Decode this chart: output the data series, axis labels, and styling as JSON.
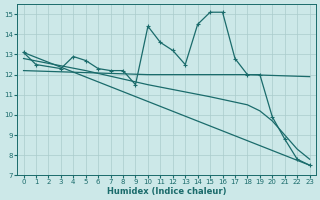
{
  "xlabel": "Humidex (Indice chaleur)",
  "bg_color": "#cce8e8",
  "line_color": "#1a6b6b",
  "grid_color": "#aacccc",
  "xlim": [
    -0.5,
    23.5
  ],
  "ylim": [
    7,
    15.5
  ],
  "yticks": [
    7,
    8,
    9,
    10,
    11,
    12,
    13,
    14,
    15
  ],
  "xticks": [
    0,
    1,
    2,
    3,
    4,
    5,
    6,
    7,
    8,
    9,
    10,
    11,
    12,
    13,
    14,
    15,
    16,
    17,
    18,
    19,
    20,
    21,
    22,
    23
  ],
  "series1_x": [
    0,
    1,
    3,
    4,
    5,
    6,
    7,
    8,
    9,
    10,
    11,
    12,
    13,
    14,
    15,
    16,
    17,
    18,
    19,
    20,
    21,
    22,
    23
  ],
  "series1_y": [
    13.1,
    12.5,
    12.3,
    12.9,
    12.7,
    12.3,
    12.2,
    12.2,
    11.5,
    14.4,
    13.6,
    13.2,
    12.5,
    14.5,
    15.1,
    15.1,
    12.8,
    12.0,
    12.0,
    9.9,
    8.8,
    7.8,
    7.5
  ],
  "series2_x": [
    0,
    10,
    18,
    23
  ],
  "series2_y": [
    12.2,
    12.0,
    12.0,
    11.9
  ],
  "series3_x": [
    0,
    5,
    10,
    15,
    18,
    19,
    20,
    21,
    22,
    23
  ],
  "series3_y": [
    12.8,
    12.2,
    11.5,
    10.9,
    10.5,
    10.2,
    9.7,
    9.0,
    8.3,
    7.8
  ],
  "series4_x": [
    0,
    23
  ],
  "series4_y": [
    13.1,
    7.5
  ]
}
